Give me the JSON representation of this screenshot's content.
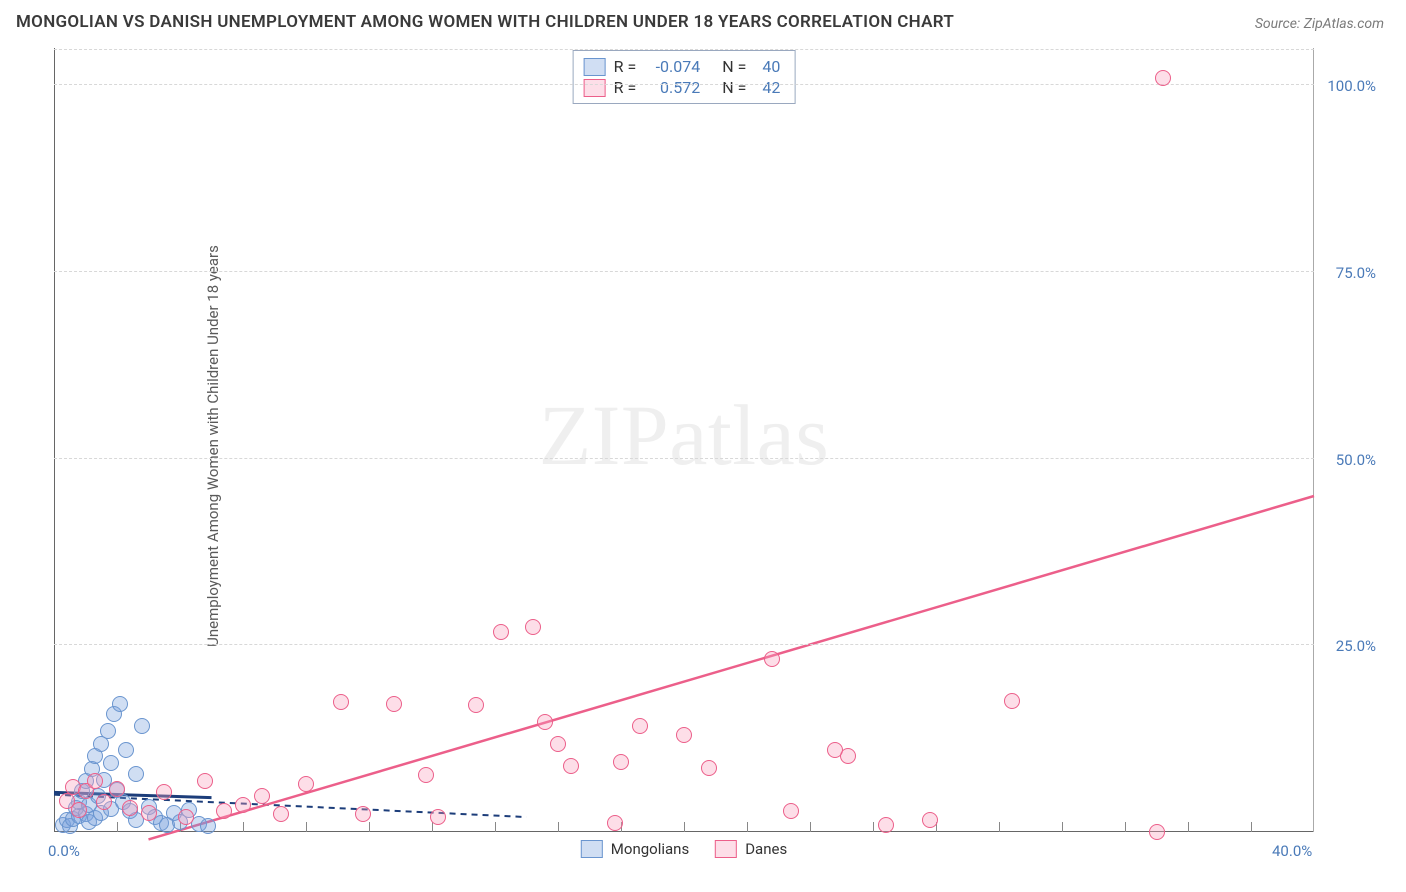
{
  "title": "MONGOLIAN VS DANISH UNEMPLOYMENT AMONG WOMEN WITH CHILDREN UNDER 18 YEARS CORRELATION CHART",
  "source": "Source: ZipAtlas.com",
  "ylabel": "Unemployment Among Women with Children Under 18 years",
  "watermark": {
    "part1": "ZIP",
    "part2": "atlas"
  },
  "chart": {
    "type": "scatter",
    "xlim": [
      0,
      40
    ],
    "ylim": [
      0,
      105
    ],
    "xtick_major": [
      0.0,
      40.0
    ],
    "xtick_minor_step": 2,
    "ytick_labels": [
      "25.0%",
      "50.0%",
      "75.0%",
      "100.0%"
    ],
    "ytick_values": [
      25,
      50,
      75,
      100
    ],
    "xtick_labels": [
      "0.0%",
      "40.0%"
    ],
    "grid_color": "#d8d8d8",
    "background_color": "#ffffff",
    "marker_radius": 8,
    "series": [
      {
        "name": "Mongolians",
        "color_fill": "rgba(120,160,220,0.35)",
        "color_stroke": "#6a95cf",
        "R": "-0.074",
        "N": "40",
        "trend": {
          "x1": 0,
          "y1": 5.0,
          "x2": 15,
          "y2": 2.0,
          "color": "#1c3d7a",
          "dash": "6 5",
          "width": 2
        },
        "trend_solid": {
          "x1": 0,
          "y1": 5.3,
          "x2": 5,
          "y2": 4.6,
          "color": "#1c3d7a",
          "width": 3
        },
        "points": [
          [
            0.3,
            1.0
          ],
          [
            0.4,
            1.6
          ],
          [
            0.5,
            0.8
          ],
          [
            0.6,
            1.8
          ],
          [
            0.7,
            3.2
          ],
          [
            0.8,
            2.2
          ],
          [
            0.8,
            4.0
          ],
          [
            0.9,
            5.5
          ],
          [
            1.0,
            2.4
          ],
          [
            1.0,
            6.8
          ],
          [
            1.1,
            1.4
          ],
          [
            1.1,
            3.6
          ],
          [
            1.2,
            8.4
          ],
          [
            1.3,
            1.9
          ],
          [
            1.3,
            10.2
          ],
          [
            1.4,
            4.8
          ],
          [
            1.5,
            2.6
          ],
          [
            1.5,
            11.8
          ],
          [
            1.6,
            7.0
          ],
          [
            1.7,
            13.5
          ],
          [
            1.8,
            3.1
          ],
          [
            1.8,
            9.2
          ],
          [
            1.9,
            15.8
          ],
          [
            2.0,
            5.6
          ],
          [
            2.1,
            17.2
          ],
          [
            2.2,
            4.0
          ],
          [
            2.3,
            11.0
          ],
          [
            2.4,
            2.8
          ],
          [
            2.6,
            1.6
          ],
          [
            2.6,
            7.8
          ],
          [
            2.8,
            14.2
          ],
          [
            3.0,
            3.4
          ],
          [
            3.2,
            2.0
          ],
          [
            3.4,
            1.2
          ],
          [
            3.6,
            0.9
          ],
          [
            3.8,
            2.6
          ],
          [
            4.0,
            1.4
          ],
          [
            4.3,
            3.0
          ],
          [
            4.6,
            1.1
          ],
          [
            4.9,
            0.8
          ]
        ]
      },
      {
        "name": "Danes",
        "color_fill": "rgba(248,160,190,0.35)",
        "color_stroke": "#ec5f8a",
        "R": "0.572",
        "N": "42",
        "trend": {
          "x1": 3.0,
          "y1": -1.0,
          "x2": 40,
          "y2": 45.0,
          "color": "#ec5f8a",
          "width": 2.5
        },
        "points": [
          [
            0.4,
            4.2
          ],
          [
            0.6,
            6.0
          ],
          [
            0.8,
            3.0
          ],
          [
            1.0,
            5.5
          ],
          [
            1.3,
            6.8
          ],
          [
            1.6,
            4.0
          ],
          [
            2.0,
            5.8
          ],
          [
            2.4,
            3.2
          ],
          [
            3.0,
            2.6
          ],
          [
            3.5,
            5.4
          ],
          [
            4.2,
            2.0
          ],
          [
            4.8,
            6.8
          ],
          [
            5.4,
            2.8
          ],
          [
            6.0,
            3.6
          ],
          [
            6.6,
            4.8
          ],
          [
            7.2,
            2.4
          ],
          [
            8.0,
            6.4
          ],
          [
            9.1,
            17.4
          ],
          [
            9.8,
            2.4
          ],
          [
            10.8,
            17.2
          ],
          [
            11.8,
            7.6
          ],
          [
            12.2,
            2.0
          ],
          [
            13.4,
            17.0
          ],
          [
            14.2,
            26.8
          ],
          [
            15.2,
            27.4
          ],
          [
            15.6,
            14.8
          ],
          [
            16.0,
            11.8
          ],
          [
            16.4,
            8.8
          ],
          [
            17.8,
            1.2
          ],
          [
            18.0,
            9.4
          ],
          [
            18.6,
            14.2
          ],
          [
            20.0,
            13.0
          ],
          [
            20.8,
            8.6
          ],
          [
            22.8,
            23.2
          ],
          [
            23.4,
            2.8
          ],
          [
            25.2,
            10.2
          ],
          [
            27.8,
            1.6
          ],
          [
            30.4,
            17.6
          ],
          [
            24.8,
            11.0
          ],
          [
            26.4,
            1.0
          ],
          [
            35.2,
            101.0
          ],
          [
            35.0,
            0.0
          ]
        ]
      }
    ],
    "stats_box": {
      "rows": [
        {
          "swatch_fill": "rgba(120,160,220,0.35)",
          "swatch_stroke": "#6a95cf",
          "r_label": "R =",
          "r_val": "-0.074",
          "n_label": "N =",
          "n_val": "40"
        },
        {
          "swatch_fill": "rgba(248,160,190,0.35)",
          "swatch_stroke": "#ec5f8a",
          "r_label": "R =",
          "r_val": "0.572",
          "n_label": "N =",
          "n_val": "42"
        }
      ]
    },
    "legend": [
      {
        "swatch_fill": "rgba(120,160,220,0.35)",
        "swatch_stroke": "#6a95cf",
        "label": "Mongolians"
      },
      {
        "swatch_fill": "rgba(248,160,190,0.35)",
        "swatch_stroke": "#ec5f8a",
        "label": "Danes"
      }
    ]
  }
}
